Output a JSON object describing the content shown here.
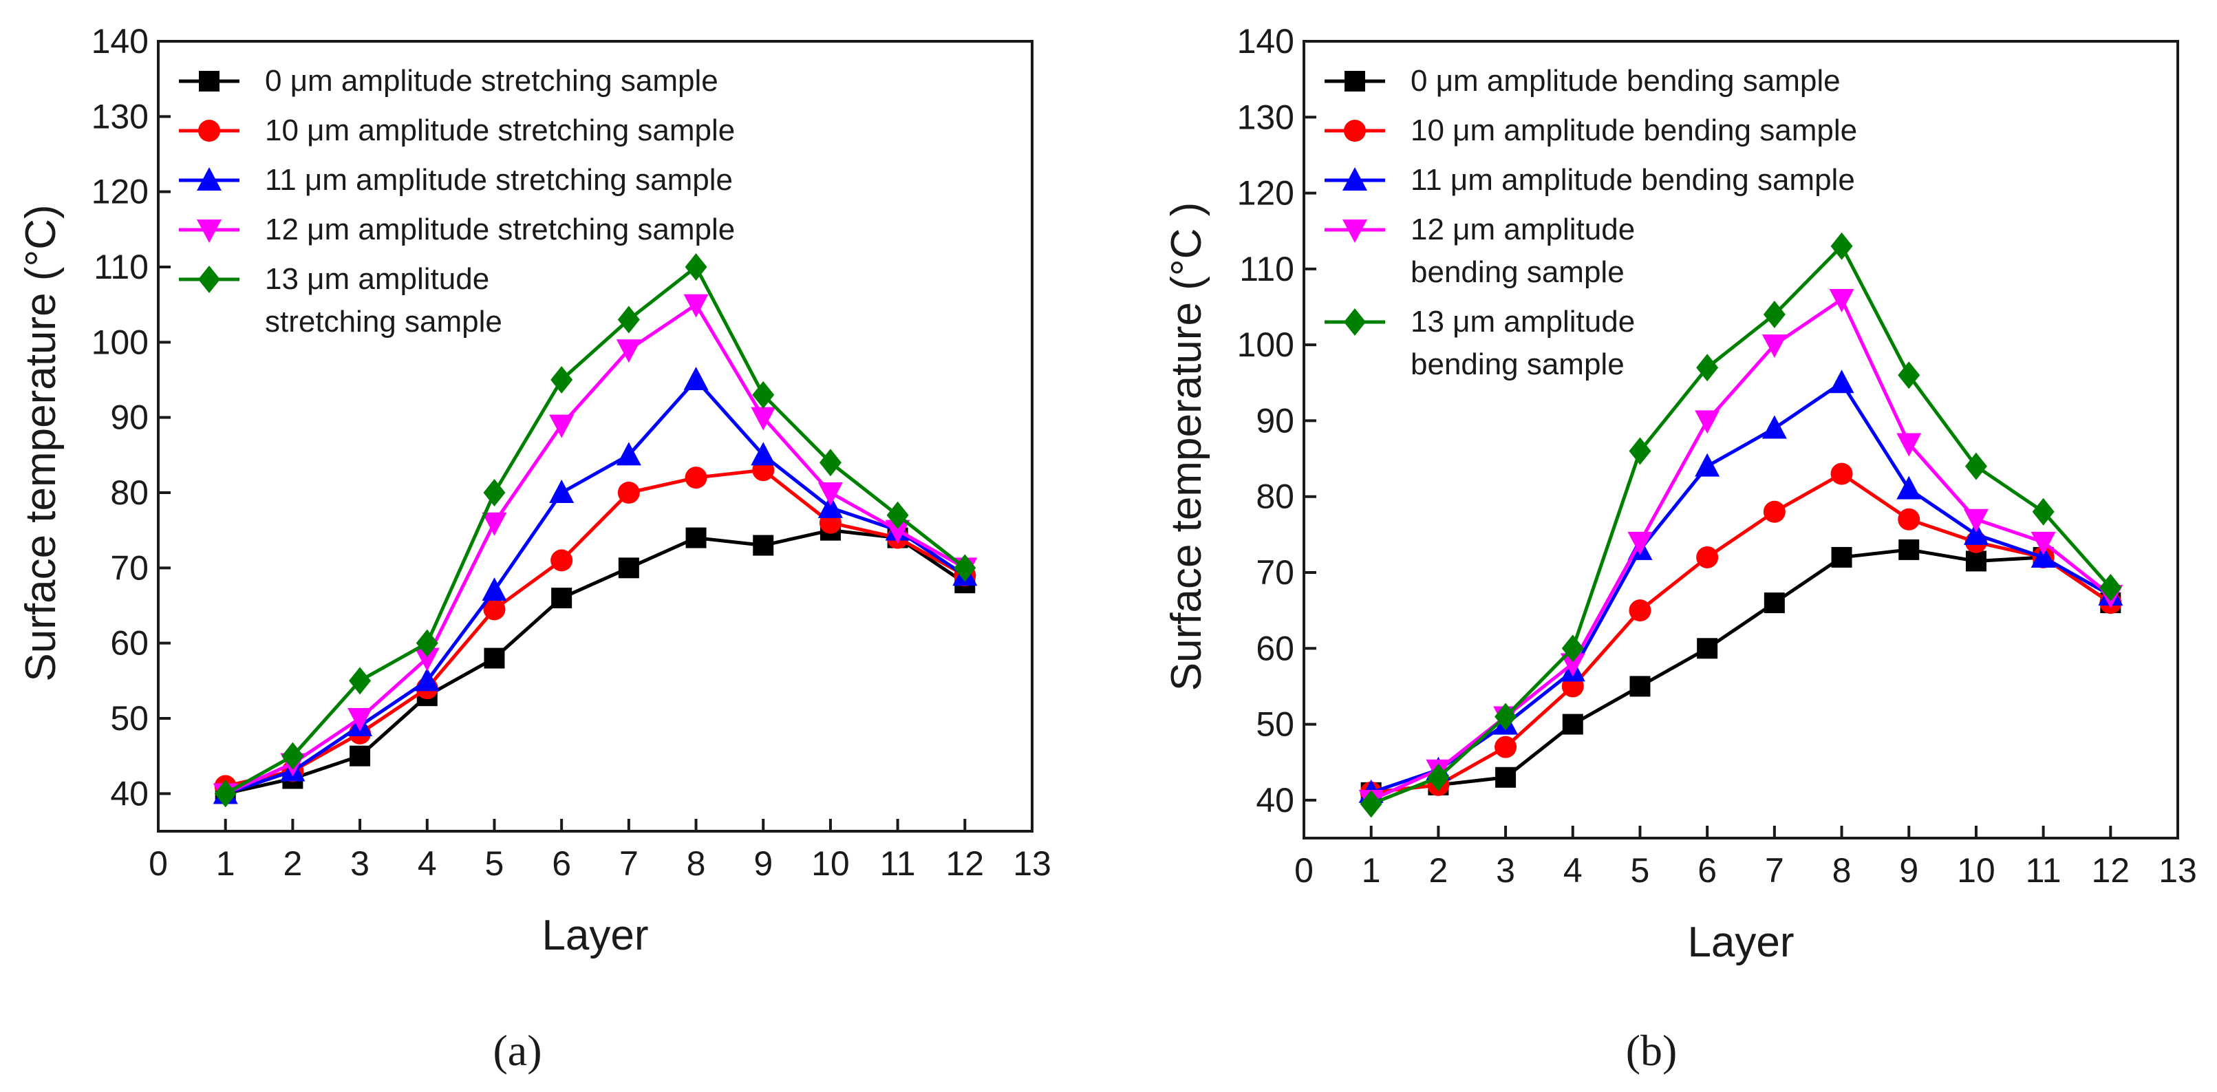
{
  "figure": {
    "captions": [
      "(a)",
      "(b)"
    ]
  },
  "chart_data": [
    {
      "type": "line",
      "title": "",
      "caption": "(a)",
      "xlabel": "Layer",
      "ylabel": "Surface temperature (°C)",
      "xlim": [
        0,
        13
      ],
      "ylim": [
        35,
        140
      ],
      "xticks": [
        0,
        1,
        2,
        3,
        4,
        5,
        6,
        7,
        8,
        9,
        10,
        11,
        12,
        13
      ],
      "yticks": [
        40,
        50,
        60,
        70,
        80,
        90,
        100,
        110,
        120,
        130,
        140
      ],
      "grid": false,
      "legend_position": "top-left",
      "x": [
        1,
        2,
        3,
        4,
        5,
        6,
        7,
        8,
        9,
        10,
        11,
        12
      ],
      "series": [
        {
          "name": "0 μm amplitude stretching sample",
          "legend_lines": [
            "0 μm amplitude stretching sample"
          ],
          "color": "#000000",
          "marker": "square",
          "values": [
            40,
            42,
            45,
            53,
            58,
            66,
            70,
            74,
            73,
            75,
            74,
            68
          ]
        },
        {
          "name": "10 μm amplitude stretching sample",
          "legend_lines": [
            "10 μm amplitude stretching sample"
          ],
          "color": "#ff0000",
          "marker": "circle",
          "values": [
            41,
            43,
            48,
            54,
            64.5,
            71,
            80,
            82,
            83,
            76,
            74,
            69
          ]
        },
        {
          "name": "11 μm amplitude stretching sample",
          "legend_lines": [
            "11 μm amplitude stretching sample"
          ],
          "color": "#0000ff",
          "marker": "triangle-up",
          "values": [
            40,
            43,
            49,
            55,
            67,
            80,
            85,
            95,
            85,
            78,
            75,
            69
          ]
        },
        {
          "name": "12 μm amplitude stretching sample",
          "legend_lines": [
            "12 μm amplitude stretching sample"
          ],
          "color": "#ff00ff",
          "marker": "triangle-down",
          "values": [
            40,
            44,
            50,
            58,
            76,
            89,
            99,
            105,
            90,
            80,
            75,
            70
          ]
        },
        {
          "name": "13 μm amplitude stretching sample",
          "legend_lines": [
            "13 μm amplitude",
            "stretching sample"
          ],
          "color": "#008000",
          "marker": "diamond",
          "values": [
            40,
            45,
            55,
            60,
            80,
            95,
            103,
            110,
            93,
            84,
            77,
            70
          ]
        }
      ]
    },
    {
      "type": "line",
      "title": "",
      "caption": "(b)",
      "xlabel": "Layer",
      "ylabel": "Surface temperature (°C )",
      "xlim": [
        0,
        13
      ],
      "ylim": [
        35,
        140
      ],
      "xticks": [
        0,
        1,
        2,
        3,
        4,
        5,
        6,
        7,
        8,
        9,
        10,
        11,
        12,
        13
      ],
      "yticks": [
        40,
        50,
        60,
        70,
        80,
        90,
        100,
        110,
        120,
        130,
        140
      ],
      "grid": false,
      "legend_position": "top-left",
      "x": [
        1,
        2,
        3,
        4,
        5,
        6,
        7,
        8,
        9,
        10,
        11,
        12
      ],
      "series": [
        {
          "name": "0 μm amplitude bending sample",
          "legend_lines": [
            "0 μm amplitude bending sample"
          ],
          "color": "#000000",
          "marker": "square",
          "values": [
            41,
            42,
            43,
            50,
            55,
            60,
            66,
            72,
            73,
            71.5,
            72,
            66
          ]
        },
        {
          "name": "10 μm amplitude bending sample",
          "legend_lines": [
            "10 μm amplitude bending sample"
          ],
          "color": "#ff0000",
          "marker": "circle",
          "values": [
            41,
            42,
            47,
            55,
            65,
            72,
            78,
            83,
            77,
            74,
            72,
            66
          ]
        },
        {
          "name": "11 μm amplitude bending sample",
          "legend_lines": [
            "11 μm amplitude bending sample"
          ],
          "color": "#0000ff",
          "marker": "triangle-up",
          "values": [
            41,
            44,
            50,
            57,
            73,
            84,
            89,
            95,
            81,
            75,
            72,
            67
          ]
        },
        {
          "name": "12 μm amplitude bending sample",
          "legend_lines": [
            "12 μm amplitude",
            "bending sample"
          ],
          "color": "#ff00ff",
          "marker": "triangle-down",
          "values": [
            40,
            44,
            51,
            58,
            74,
            90,
            100,
            106,
            87,
            77,
            74,
            67
          ]
        },
        {
          "name": "13 μm amplitude bending sample",
          "legend_lines": [
            "13 μm amplitude",
            "bending sample"
          ],
          "color": "#008000",
          "marker": "diamond",
          "values": [
            39.5,
            43,
            51,
            60,
            86,
            97,
            104,
            113,
            96,
            84,
            78,
            68
          ]
        }
      ]
    }
  ]
}
